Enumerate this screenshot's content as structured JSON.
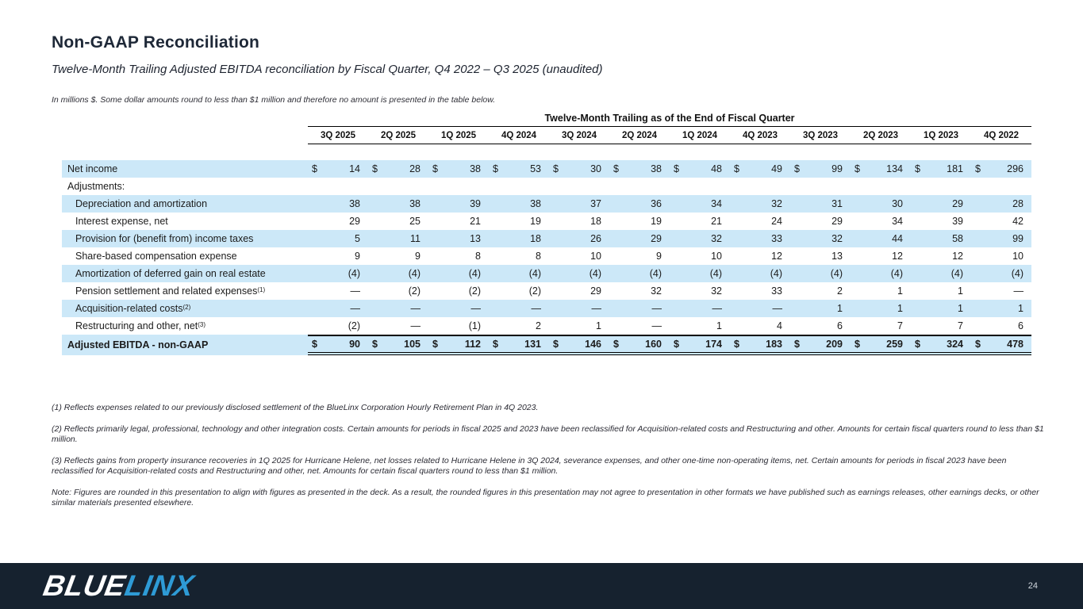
{
  "slide": {
    "title": "Non-GAAP Reconciliation",
    "subtitle": "Twelve-Month Trailing Adjusted EBITDA reconciliation by Fiscal Quarter, Q4 2022 – Q3 2025 (unaudited)",
    "units_note": "In millions $.   Some dollar amounts round to less than $1 million and therefore no amount is presented in the table below."
  },
  "table": {
    "header_title": "Twelve-Month Trailing as of the End of Fiscal Quarter",
    "columns": [
      "3Q 2025",
      "2Q 2025",
      "1Q 2025",
      "4Q 2024",
      "3Q 2024",
      "2Q 2024",
      "1Q 2024",
      "4Q 2023",
      "3Q 2023",
      "2Q 2023",
      "1Q 2023",
      "4Q 2022"
    ],
    "rows": [
      {
        "label": "Net income",
        "indent": false,
        "dollar": true,
        "shaded": true,
        "values": [
          "14",
          "28",
          "38",
          "53",
          "30",
          "38",
          "48",
          "49",
          "99",
          "134",
          "181",
          "296"
        ]
      },
      {
        "label": "Adjustments:",
        "indent": false,
        "dollar": false,
        "shaded": false,
        "values": []
      },
      {
        "label": "Depreciation and amortization",
        "indent": true,
        "dollar": false,
        "shaded": true,
        "values": [
          "38",
          "38",
          "39",
          "38",
          "37",
          "36",
          "34",
          "32",
          "31",
          "30",
          "29",
          "28"
        ]
      },
      {
        "label": "Interest expense, net",
        "indent": true,
        "dollar": false,
        "shaded": false,
        "values": [
          "29",
          "25",
          "21",
          "19",
          "18",
          "19",
          "21",
          "24",
          "29",
          "34",
          "39",
          "42"
        ]
      },
      {
        "label": "Provision for (benefit from) income taxes",
        "indent": true,
        "dollar": false,
        "shaded": true,
        "values": [
          "5",
          "11",
          "13",
          "18",
          "26",
          "29",
          "32",
          "33",
          "32",
          "44",
          "58",
          "99"
        ]
      },
      {
        "label": "Share-based compensation expense",
        "indent": true,
        "dollar": false,
        "shaded": false,
        "values": [
          "9",
          "9",
          "8",
          "8",
          "10",
          "9",
          "10",
          "12",
          "13",
          "12",
          "12",
          "10"
        ]
      },
      {
        "label": "Amortization of deferred gain on real estate",
        "indent": true,
        "dollar": false,
        "shaded": true,
        "values": [
          "(4)",
          "(4)",
          "(4)",
          "(4)",
          "(4)",
          "(4)",
          "(4)",
          "(4)",
          "(4)",
          "(4)",
          "(4)",
          "(4)"
        ]
      },
      {
        "label": "Pension settlement and related expenses",
        "sup": "(1)",
        "indent": true,
        "dollar": false,
        "shaded": false,
        "values": [
          "—",
          "(2)",
          "(2)",
          "(2)",
          "29",
          "32",
          "32",
          "33",
          "2",
          "1",
          "1",
          "—"
        ]
      },
      {
        "label": "Acquisition-related costs",
        "sup": "(2)",
        "indent": true,
        "dollar": false,
        "shaded": true,
        "values": [
          "—",
          "—",
          "—",
          "—",
          "—",
          "—",
          "—",
          "—",
          "1",
          "1",
          "1",
          "1"
        ]
      },
      {
        "label": "Restructuring and other, net ",
        "sup": "(3)",
        "indent": true,
        "dollar": false,
        "shaded": false,
        "values": [
          "(2)",
          "—",
          "(1)",
          "2",
          "1",
          "—",
          "1",
          "4",
          "6",
          "7",
          "7",
          "6"
        ]
      },
      {
        "label": "Adjusted EBITDA - non-GAAP",
        "indent": false,
        "dollar": true,
        "shaded": true,
        "bold": true,
        "total": true,
        "values": [
          "90",
          "105",
          "112",
          "131",
          "146",
          "160",
          "174",
          "183",
          "209",
          "259",
          "324",
          "478"
        ]
      }
    ]
  },
  "footnotes": [
    "(1) Reflects expenses related to our previously disclosed settlement of the BlueLinx Corporation Hourly Retirement Plan in 4Q 2023.",
    "(2) Reflects primarily legal, professional, technology and other integration costs. Certain amounts for periods in fiscal 2025 and 2023 have been reclassified for Acquisition-related costs and Restructuring and other.  Amounts for certain fiscal quarters round to less than $1 million.",
    "(3) Reflects gains from property insurance recoveries in 1Q 2025 for Hurricane Helene, net losses related to Hurricane Helene in 3Q 2024, severance expenses, and other one-time non-operating items, net. Certain amounts for periods in fiscal 2023 have been reclassified for Acquisition-related costs and Restructuring and other, net.   Amounts for certain fiscal quarters round to less than $1 million.",
    "Note: Figures are rounded in this presentation to align with figures as presented in the deck.  As a result, the rounded figures in this presentation may not agree to presentation in other formats we have published such as earnings releases, other earnings decks, or other similar materials presented elsewhere."
  ],
  "footer": {
    "logo_blue": "BLUE",
    "logo_linx": "LINX",
    "page_number": "24"
  },
  "colors": {
    "row_shade": "#cce8f8",
    "footer_bg": "#16222f",
    "logo_linx_blue": "#2e9bd6",
    "title_navy": "#1e2837"
  }
}
